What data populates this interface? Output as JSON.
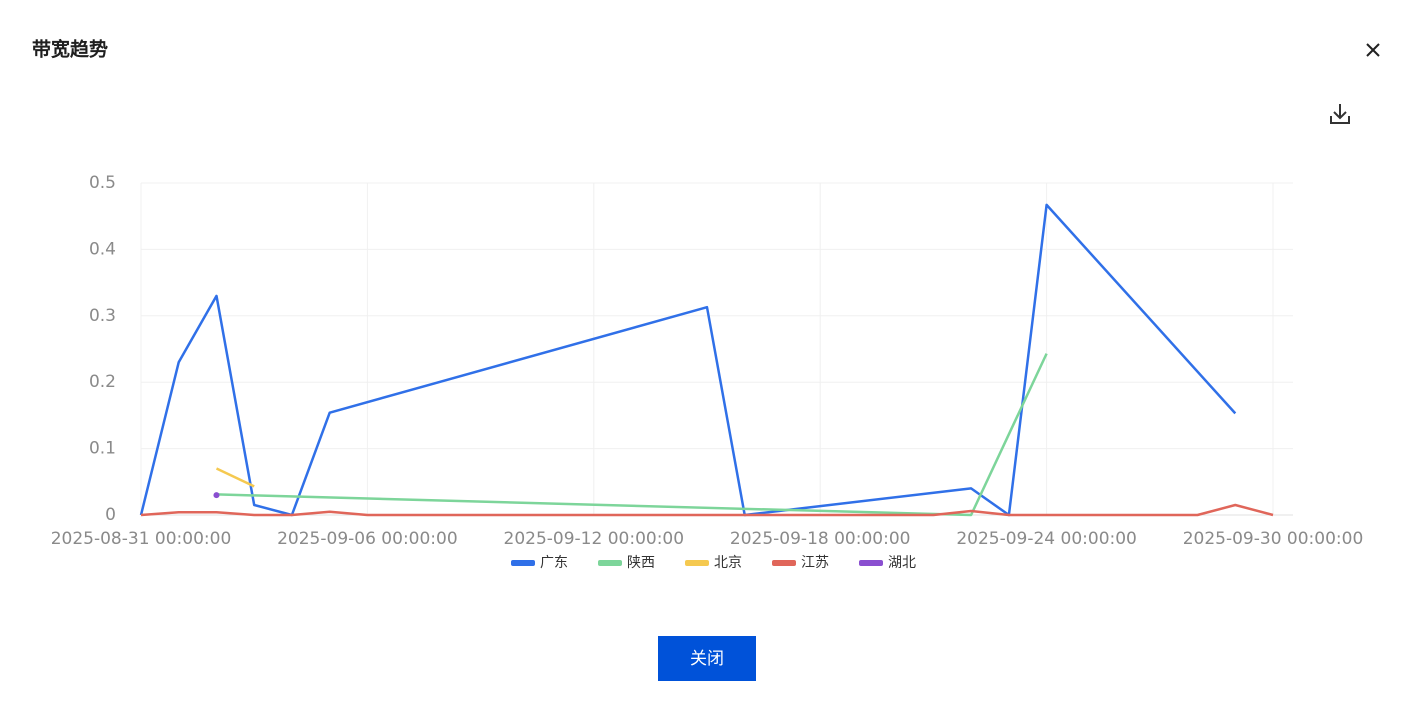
{
  "header": {
    "title": "带宽趋势"
  },
  "footer": {
    "button": "关闭"
  },
  "chart_data": {
    "type": "line",
    "xlim": [
      "2025-08-31 00:00:00",
      "2025-09-30 00:00:00"
    ],
    "xticks": [
      "2025-08-31 00:00:00",
      "2025-09-06 00:00:00",
      "2025-09-12 00:00:00",
      "2025-09-18 00:00:00",
      "2025-09-24 00:00:00",
      "2025-09-30 00:00:00"
    ],
    "ylim": [
      0,
      0.5
    ],
    "yticks": [
      0,
      0.1,
      0.2,
      0.3,
      0.4,
      0.5
    ],
    "grid": true,
    "series": [
      {
        "name": "广东",
        "color": "#3070e8",
        "x": [
          "2025-08-31 00:00:00",
          "2025-09-01 00:00:00",
          "2025-09-02 00:00:00",
          "2025-09-03 00:00:00",
          "2025-09-04 00:00:00",
          "2025-09-05 00:00:00",
          "2025-09-15 00:00:00",
          "2025-09-16 00:00:00",
          "2025-09-22 00:00:00",
          "2025-09-23 00:00:00",
          "2025-09-24 00:00:00",
          "2025-09-29 00:00:00"
        ],
        "values": [
          0,
          0.23,
          0.33,
          0.015,
          0,
          0.154,
          0.313,
          0,
          0.04,
          0,
          0.467,
          0.153
        ]
      },
      {
        "name": "陕西",
        "color": "#7dd59a",
        "x": [
          "2025-09-02 00:00:00",
          "2025-09-22 00:00:00",
          "2025-09-24 00:00:00"
        ],
        "values": [
          0.031,
          0,
          0.243
        ]
      },
      {
        "name": "北京",
        "color": "#f5c950",
        "x": [
          "2025-09-02 00:00:00",
          "2025-09-03 00:00:00"
        ],
        "values": [
          0.07,
          0.043
        ]
      },
      {
        "name": "江苏",
        "color": "#e0665a",
        "x": [
          "2025-08-31 00:00:00",
          "2025-09-01 00:00:00",
          "2025-09-02 00:00:00",
          "2025-09-03 00:00:00",
          "2025-09-04 00:00:00",
          "2025-09-05 00:00:00",
          "2025-09-06 00:00:00",
          "2025-09-21 00:00:00",
          "2025-09-22 00:00:00",
          "2025-09-23 00:00:00",
          "2025-09-28 00:00:00",
          "2025-09-29 00:00:00",
          "2025-09-30 00:00:00"
        ],
        "values": [
          0,
          0.004,
          0.004,
          0,
          0,
          0.005,
          0,
          0,
          0.006,
          0,
          0,
          0.015,
          0
        ]
      },
      {
        "name": "湖北",
        "color": "#8a4fd0",
        "x": [
          "2025-09-02 00:00:00"
        ],
        "values": [
          0.03
        ]
      }
    ]
  }
}
